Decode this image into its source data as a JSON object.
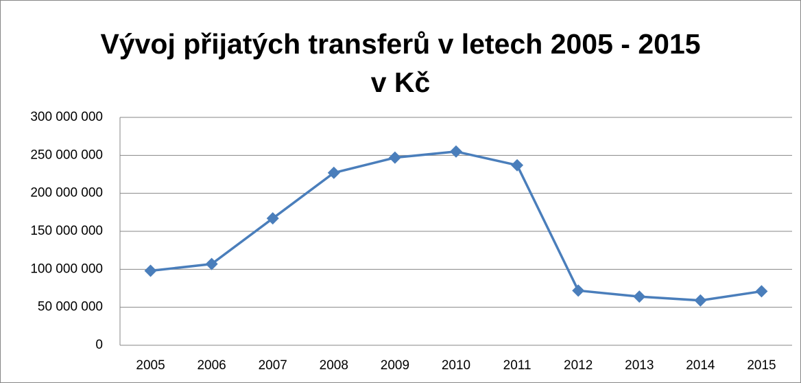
{
  "chart_data": {
    "type": "line",
    "title": "Vývoj přijatých transferů v letech 2005 - 2015 v Kč",
    "categories": [
      "2005",
      "2006",
      "2007",
      "2008",
      "2009",
      "2010",
      "2011",
      "2012",
      "2013",
      "2014",
      "2015"
    ],
    "series": [
      {
        "color": "#4a7ebb",
        "values": [
          98000000,
          107000000,
          167000000,
          227000000,
          247000000,
          255000000,
          237000000,
          72000000,
          64000000,
          59000000,
          71000000
        ]
      }
    ],
    "ylim": [
      0,
      300000000
    ],
    "yticks": [
      0,
      {
        "value": 50000000,
        "label": "50 000 000"
      },
      {
        "value": 100000000,
        "label": "100 000 000"
      },
      {
        "value": 150000000,
        "label": "150 000 000"
      },
      {
        "value": 200000000,
        "label": "200 000 000"
      },
      {
        "value": 250000000,
        "label": "250 000 000"
      },
      {
        "value": 300000000,
        "label": "300 000 000"
      }
    ],
    "grid": true
  }
}
